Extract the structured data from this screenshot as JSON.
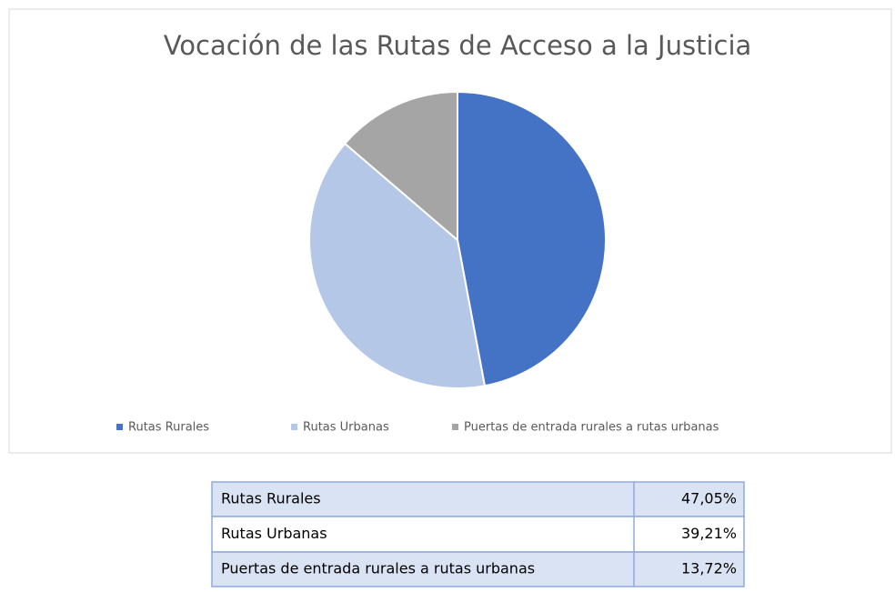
{
  "chart_data": {
    "type": "pie",
    "title": "Vocación de las Rutas de Acceso a la Justicia",
    "categories": [
      "Rutas Rurales",
      "Rutas Urbanas",
      "Puertas de entrada rurales a rutas urbanas"
    ],
    "values": [
      47.05,
      39.21,
      13.72
    ],
    "value_labels": [
      "47,05%",
      "39,21%",
      "13,72%"
    ],
    "colors": [
      "#4472c4",
      "#b4c7e7",
      "#a5a5a5"
    ],
    "legend": "bottom"
  }
}
